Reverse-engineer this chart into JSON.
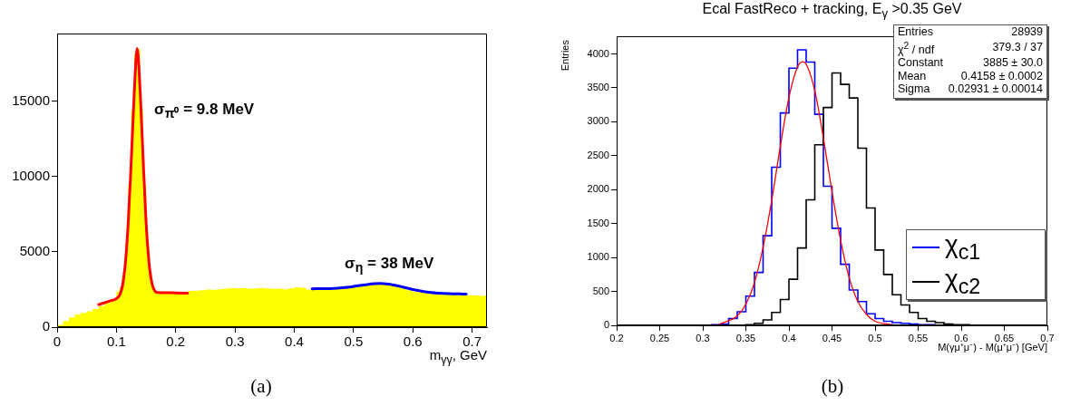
{
  "chart_data": [
    {
      "type": "histogram",
      "xlabel": "m$_{γγ}$, GeV",
      "xlim": [
        0,
        0.725
      ],
      "xticks": [
        0,
        0.1,
        0.2,
        0.3,
        0.4,
        0.5,
        0.6,
        0.7
      ],
      "ylim": [
        0,
        19500
      ],
      "yticks": [
        0,
        5000,
        10000,
        15000
      ],
      "bins": [
        0,
        0.01,
        0.02,
        0.03,
        0.04,
        0.05,
        0.06,
        0.07,
        0.08,
        0.09,
        0.1,
        0.105,
        0.11,
        0.115,
        0.12,
        0.125,
        0.13,
        0.135,
        0.14,
        0.145,
        0.15,
        0.155,
        0.16,
        0.165,
        0.17,
        0.18,
        0.19,
        0.2,
        0.21,
        0.22,
        0.23,
        0.24,
        0.25,
        0.26,
        0.27,
        0.28,
        0.29,
        0.3,
        0.31,
        0.32,
        0.33,
        0.34,
        0.35,
        0.36,
        0.37,
        0.38,
        0.39,
        0.4,
        0.41,
        0.42,
        0.43,
        0.44,
        0.45,
        0.46,
        0.47,
        0.48,
        0.49,
        0.5,
        0.51,
        0.52,
        0.53,
        0.54,
        0.55,
        0.56,
        0.57,
        0.58,
        0.59,
        0.6,
        0.61,
        0.62,
        0.63,
        0.64,
        0.65,
        0.66,
        0.67,
        0.68,
        0.69,
        0.7,
        0.71,
        0.72,
        0.725
      ],
      "series": [
        {
          "type": "histogram",
          "color": "#ffff00",
          "values": [
            150,
            400,
            650,
            850,
            950,
            1050,
            1200,
            1400,
            1600,
            1850,
            2370,
            2600,
            3450,
            5600,
            9500,
            14400,
            18100,
            18480,
            14400,
            9500,
            5600,
            3450,
            2600,
            2370,
            2250,
            2230,
            2260,
            2300,
            2350,
            2400,
            2420,
            2450,
            2500,
            2480,
            2520,
            2560,
            2600,
            2580,
            2600,
            2560,
            2580,
            2600,
            2570,
            2550,
            2560,
            2520,
            2580,
            2650,
            2620,
            2500,
            2480,
            2500,
            2520,
            2560,
            2600,
            2650,
            2700,
            2750,
            2800,
            2850,
            2900,
            2920,
            2900,
            2850,
            2750,
            2600,
            2450,
            2350,
            2300,
            2250,
            2200,
            2200,
            2180,
            2150,
            2150,
            2130,
            2120,
            2100,
            2080,
            2100
          ]
        },
        {
          "type": "line",
          "color": "#ff0000",
          "x": [
            0.07,
            0.09,
            0.1,
            0.105,
            0.11,
            0.115,
            0.12,
            0.125,
            0.13,
            0.135,
            0.14,
            0.145,
            0.15,
            0.155,
            0.16,
            0.165,
            0.17,
            0.19,
            0.22
          ],
          "values": [
            1500,
            1750,
            1900,
            2100,
            2700,
            4200,
            7000,
            11000,
            15500,
            18500,
            15700,
            11200,
            7000,
            4300,
            2900,
            2400,
            2300,
            2280,
            2250
          ]
        },
        {
          "type": "line",
          "color": "#0000ff",
          "x": [
            0.43,
            0.46,
            0.49,
            0.52,
            0.545,
            0.57,
            0.6,
            0.63,
            0.66,
            0.69
          ],
          "values": [
            2550,
            2560,
            2650,
            2820,
            2900,
            2780,
            2500,
            2300,
            2220,
            2200
          ]
        }
      ],
      "annotations": [
        "σ$_{π⁰}$ = 9.8 MeV",
        "σ$_{η}$ = 38 MeV",
        "(a)"
      ]
    },
    {
      "type": "histogram",
      "title": "Ecal FastReco + tracking, E$_{γ}$ >0.35 GeV",
      "xlabel": "M(γμ⁺μ⁻) - M(μ⁺μ⁻) [GeV]",
      "ylabel": "Entries",
      "xlim": [
        0.2,
        0.7
      ],
      "xticks": [
        0.2,
        0.25,
        0.3,
        0.35,
        0.4,
        0.45,
        0.5,
        0.55,
        0.6,
        0.65,
        0.7
      ],
      "ylim": [
        0,
        4260
      ],
      "yticks": [
        0,
        500,
        1000,
        1500,
        2000,
        2500,
        3000,
        3500,
        4000
      ],
      "legend": "bottom right",
      "bins": [
        0.2,
        0.21,
        0.22,
        0.23,
        0.24,
        0.25,
        0.26,
        0.27,
        0.28,
        0.29,
        0.3,
        0.31,
        0.32,
        0.33,
        0.34,
        0.35,
        0.36,
        0.37,
        0.38,
        0.39,
        0.4,
        0.41,
        0.42,
        0.43,
        0.44,
        0.45,
        0.46,
        0.47,
        0.48,
        0.49,
        0.5,
        0.51,
        0.52,
        0.53,
        0.54,
        0.55,
        0.56,
        0.57,
        0.58,
        0.59,
        0.6,
        0.61,
        0.62,
        0.63,
        0.64,
        0.65,
        0.66,
        0.67,
        0.68,
        0.69,
        0.7
      ],
      "series": [
        {
          "type": "histogram",
          "name": "χ$_{c1}$",
          "color": "#0000ff",
          "values": [
            0,
            0,
            0,
            0,
            0,
            0,
            0,
            0,
            0,
            0,
            0,
            10,
            20,
            100,
            200,
            430,
            780,
            1320,
            2330,
            3130,
            3790,
            4060,
            3880,
            3110,
            2050,
            1430,
            900,
            520,
            350,
            170,
            100,
            60,
            40,
            30,
            20,
            10,
            10,
            0,
            0,
            0,
            0,
            0,
            0,
            0,
            0,
            0,
            0,
            0,
            0,
            0
          ]
        },
        {
          "type": "histogram",
          "name": "χ$_{c2}$",
          "color": "#000000",
          "values": [
            0,
            0,
            0,
            0,
            0,
            0,
            0,
            0,
            0,
            0,
            0,
            0,
            0,
            0,
            0,
            10,
            30,
            80,
            190,
            380,
            680,
            1140,
            1850,
            2660,
            3210,
            3720,
            3550,
            3350,
            2610,
            1730,
            1110,
            750,
            450,
            300,
            190,
            100,
            60,
            40,
            20,
            10,
            10,
            0,
            0,
            0,
            0,
            0,
            0,
            0,
            0,
            0
          ]
        },
        {
          "type": "line",
          "color": "#ff0000",
          "x": [
            0.32,
            0.34,
            0.35,
            0.36,
            0.37,
            0.38,
            0.39,
            0.4,
            0.41,
            0.4158,
            0.42,
            0.43,
            0.44,
            0.45,
            0.46,
            0.47,
            0.48,
            0.49,
            0.5,
            0.52
          ],
          "values": [
            20,
            140,
            310,
            630,
            1150,
            1840,
            2640,
            3360,
            3810,
            3885,
            3850,
            3460,
            2760,
            1970,
            1250,
            700,
            350,
            160,
            60,
            10
          ]
        }
      ],
      "annotations": [
        "Entries",
        "28939",
        "χ$^{2}$ / ndf",
        "379.3 / 37",
        "Constant",
        "3885 ± 30.0",
        "Mean",
        "0.4158 ± 0.0002",
        "Sigma",
        "0.02931 ± 0.00014",
        "(b)"
      ]
    }
  ]
}
